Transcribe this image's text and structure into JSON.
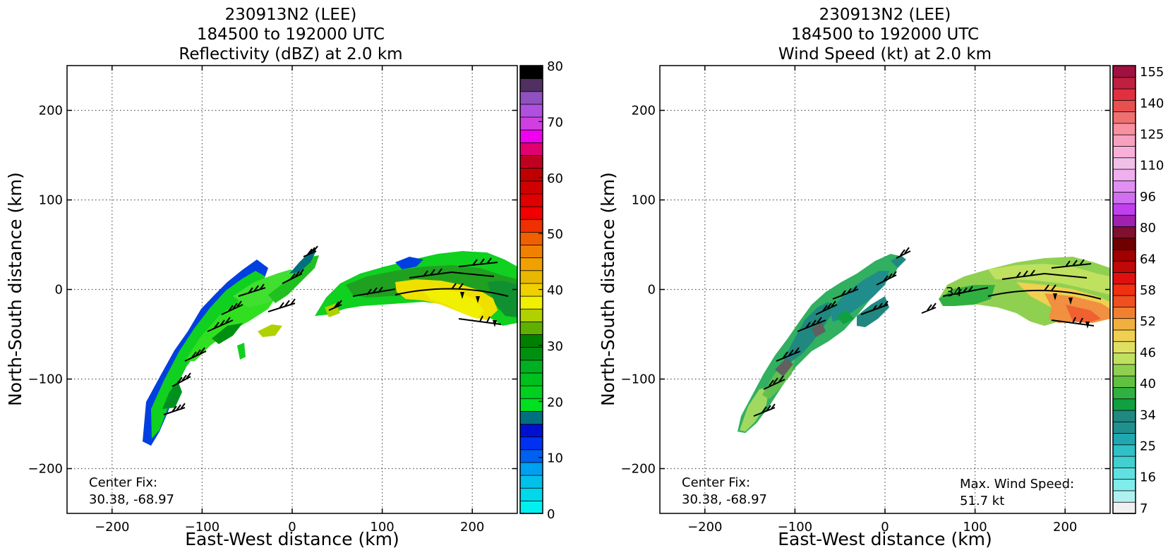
{
  "chart_data": [
    {
      "type": "heatmap",
      "title_lines": [
        "230913N2 (LEE)",
        "184500 to 192000 UTC",
        "Reflectivity (dBZ) at 2.0 km"
      ],
      "xlabel": "East-West distance (km)",
      "ylabel": "North-South distance (km)",
      "xlim": [
        -250,
        250
      ],
      "ylim": [
        -250,
        250
      ],
      "xticks": [
        -200,
        -100,
        0,
        100,
        200
      ],
      "yticks": [
        -200,
        -100,
        0,
        100,
        200
      ],
      "grid": true,
      "colorbar": {
        "min": 0,
        "max": 80,
        "ticks": [
          0,
          10,
          20,
          30,
          40,
          50,
          60,
          70,
          80
        ],
        "colors": [
          "#00f0f0",
          "#00d8ec",
          "#00c0ec",
          "#00a0f0",
          "#0060f0",
          "#0030f0",
          "#0010d0",
          "#007080",
          "#00e020",
          "#00d020",
          "#00c020",
          "#00b020",
          "#009010",
          "#008000",
          "#60b000",
          "#b0d000",
          "#f0f000",
          "#f0d000",
          "#e8b800",
          "#f0a000",
          "#f08000",
          "#f06000",
          "#f03000",
          "#f00000",
          "#e00000",
          "#d00000",
          "#c00000",
          "#c00020",
          "#e00070",
          "#f000f0",
          "#d040e0",
          "#b050e0",
          "#9050c0",
          "#503060",
          "#000000"
        ]
      },
      "annotations": [
        "Center Fix:",
        "30.38, -68.97"
      ]
    },
    {
      "type": "heatmap",
      "title_lines": [
        "230913N2 (LEE)",
        "184500 to 192000 UTC",
        "Wind Speed (kt) at 2.0 km"
      ],
      "xlabel": "East-West distance (km)",
      "ylabel": "North-South distance (km)",
      "xlim": [
        -250,
        250
      ],
      "ylim": [
        -250,
        250
      ],
      "xticks": [
        -200,
        -100,
        0,
        100,
        200
      ],
      "yticks": [
        -200,
        -100,
        0,
        100,
        200
      ],
      "grid": true,
      "colorbar": {
        "tick_labels": [
          "7",
          "16",
          "25",
          "34",
          "40",
          "46",
          "52",
          "58",
          "64",
          "80",
          "96",
          "110",
          "125",
          "140",
          "155"
        ],
        "colors": [
          "#f0f0f0",
          "#b0f0f0",
          "#80ecec",
          "#60e0e0",
          "#40d0d0",
          "#30c0c8",
          "#20a8b0",
          "#20908f",
          "#208880",
          "#10a040",
          "#30b040",
          "#60c040",
          "#90d050",
          "#c0e060",
          "#e0e060",
          "#f0d050",
          "#f0b040",
          "#f08030",
          "#f05020",
          "#f03010",
          "#e01010",
          "#c00808",
          "#a00000",
          "#700000",
          "#801030",
          "#a020b0",
          "#c040f0",
          "#d070f0",
          "#e090f0",
          "#f0b0f0",
          "#f0c0e8",
          "#f8b0d8",
          "#f8a0c0",
          "#f890a0",
          "#f07070",
          "#e85050",
          "#e03040",
          "#c02040",
          "#a01040"
        ]
      },
      "annotations": [
        "Center Fix:",
        "30.38, -68.97",
        "Max. Wind Speed:",
        "51.7 kt"
      ],
      "barb_label": "34"
    }
  ]
}
